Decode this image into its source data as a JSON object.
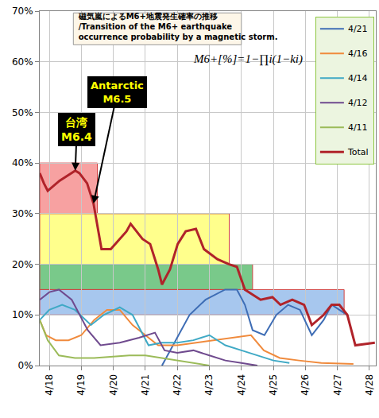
{
  "chart_data": {
    "type": "line",
    "title": "磁気嵐によるM6+地震発生確率の推移\n/Transition of the M6+ earthquake\noccurrence probability by a magnetic storm.",
    "annotations": [
      {
        "text": "M6+[%]=1−∏i(1−ki)"
      },
      {
        "text": "台湾\nM6.4",
        "x": 18.81,
        "y": 38.5
      },
      {
        "text": "Antarctic\nM6.5",
        "x": 19.38,
        "y": 32
      }
    ],
    "xlim": [
      17.7,
      28.2
    ],
    "xticks": [
      {
        "value": 18,
        "label": "4/18"
      },
      {
        "value": 19,
        "label": "4/19"
      },
      {
        "value": 20,
        "label": "4/20"
      },
      {
        "value": 21,
        "label": "4/21"
      },
      {
        "value": 22,
        "label": "4/22"
      },
      {
        "value": 23,
        "label": "4/23"
      },
      {
        "value": 24,
        "label": "4/24"
      },
      {
        "value": 25,
        "label": "4/25"
      },
      {
        "value": 26,
        "label": "4/26"
      },
      {
        "value": 27,
        "label": "4/27"
      },
      {
        "value": 28,
        "label": "4/28"
      }
    ],
    "ylim": [
      0,
      70
    ],
    "yticks": [
      {
        "value": 0,
        "label": "0%"
      },
      {
        "value": 10,
        "label": "10%"
      },
      {
        "value": 20,
        "label": "20%"
      },
      {
        "value": 30,
        "label": "30%"
      },
      {
        "value": 40,
        "label": "40%"
      },
      {
        "value": 50,
        "label": "50%"
      },
      {
        "value": 60,
        "label": "60%"
      },
      {
        "value": 70,
        "label": "70%"
      }
    ],
    "grid": true,
    "legend": "top right",
    "bands": [
      {
        "x0": 17.7,
        "x1": 19.5,
        "y0": 30,
        "y1": 40,
        "color": "#f7a1a1"
      },
      {
        "x0": 17.7,
        "x1": 23.62,
        "y0": 20,
        "y1": 30,
        "color": "#ffff8c"
      },
      {
        "x0": 17.7,
        "x1": 24.35,
        "y0": 15,
        "y1": 20,
        "color": "#79c98a"
      },
      {
        "x0": 17.7,
        "x1": 27.21,
        "y0": 10,
        "y1": 15,
        "color": "#a7c7ee"
      }
    ],
    "series": [
      {
        "name": "4/21",
        "color": "#3e6db5",
        "x": [
          21.52,
          22.38,
          22.88,
          23.49,
          23.86,
          24.11,
          24.35,
          24.72,
          25.09,
          25.46,
          25.83,
          26.2,
          26.57,
          26.82,
          27.06,
          27.31
        ],
        "values": [
          0,
          10,
          13,
          15,
          15,
          12,
          7,
          6,
          10,
          12,
          11,
          6,
          9,
          12,
          11,
          10
        ]
      },
      {
        "name": "4/16",
        "color": "#f08a3c",
        "x": [
          17.7,
          17.9,
          18.2,
          18.6,
          19.0,
          19.4,
          19.8,
          20.2,
          20.6,
          21.0,
          21.4,
          22.0,
          22.6,
          23.2,
          23.8,
          24.3,
          24.7,
          25.2,
          25.8,
          26.5,
          27.5
        ],
        "values": [
          9,
          6,
          5,
          5,
          6,
          9,
          11,
          11,
          8,
          6,
          4,
          4,
          4.5,
          5,
          5.5,
          6,
          3,
          1.5,
          1,
          0.5,
          0.3
        ]
      },
      {
        "name": "4/14",
        "color": "#3fa9c5",
        "x": [
          17.7,
          18.0,
          18.4,
          18.8,
          19.3,
          19.7,
          20.2,
          20.6,
          21.1,
          21.5,
          22.0,
          22.5,
          23.0,
          23.5,
          24.0,
          24.5,
          25.0,
          25.5
        ],
        "values": [
          9,
          11,
          12,
          11,
          8,
          10,
          11.5,
          10,
          4,
          4.5,
          4.5,
          5,
          6,
          4,
          3,
          2,
          1,
          0.5
        ]
      },
      {
        "name": "4/12",
        "color": "#6f4a8e",
        "x": [
          17.7,
          18.0,
          18.3,
          18.7,
          19.2,
          19.6,
          20.2,
          20.8,
          21.3,
          21.6,
          22.0,
          22.5,
          23.0,
          23.5,
          24.0,
          24.5
        ],
        "values": [
          13,
          14.5,
          15,
          13,
          7,
          4,
          4.5,
          5.5,
          6.5,
          3,
          2.5,
          3,
          2,
          1,
          0.5,
          0
        ]
      },
      {
        "name": "4/11",
        "color": "#9bbb59",
        "x": [
          17.7,
          17.95,
          18.3,
          18.8,
          19.4,
          20.0,
          20.5,
          21.0,
          21.5,
          22.0,
          22.5,
          23.0
        ],
        "values": [
          9,
          5,
          2,
          1.5,
          1.5,
          1.8,
          2,
          2,
          1.5,
          1,
          0.5,
          0
        ]
      },
      {
        "name": "Total",
        "color": "#b0232a",
        "x": [
          17.7,
          17.83,
          17.95,
          18.32,
          18.81,
          18.94,
          19.18,
          19.38,
          19.63,
          19.92,
          20.41,
          20.54,
          20.91,
          21.15,
          21.4,
          21.52,
          21.77,
          22.01,
          22.26,
          22.58,
          22.83,
          23.25,
          23.62,
          23.86,
          24.11,
          24.35,
          24.6,
          24.97,
          25.22,
          25.59,
          25.96,
          26.2,
          26.57,
          26.82,
          27.06,
          27.31,
          27.56,
          28.17
        ],
        "values": [
          38,
          36,
          34.5,
          36.5,
          38.5,
          38,
          36,
          32,
          23,
          23,
          26.5,
          28,
          25,
          24,
          19,
          16,
          19,
          24,
          26.5,
          27,
          23,
          21,
          20,
          19.5,
          15,
          14,
          13,
          13.5,
          12,
          13,
          12,
          8,
          10,
          12,
          12,
          10,
          4,
          4.5
        ]
      }
    ]
  }
}
